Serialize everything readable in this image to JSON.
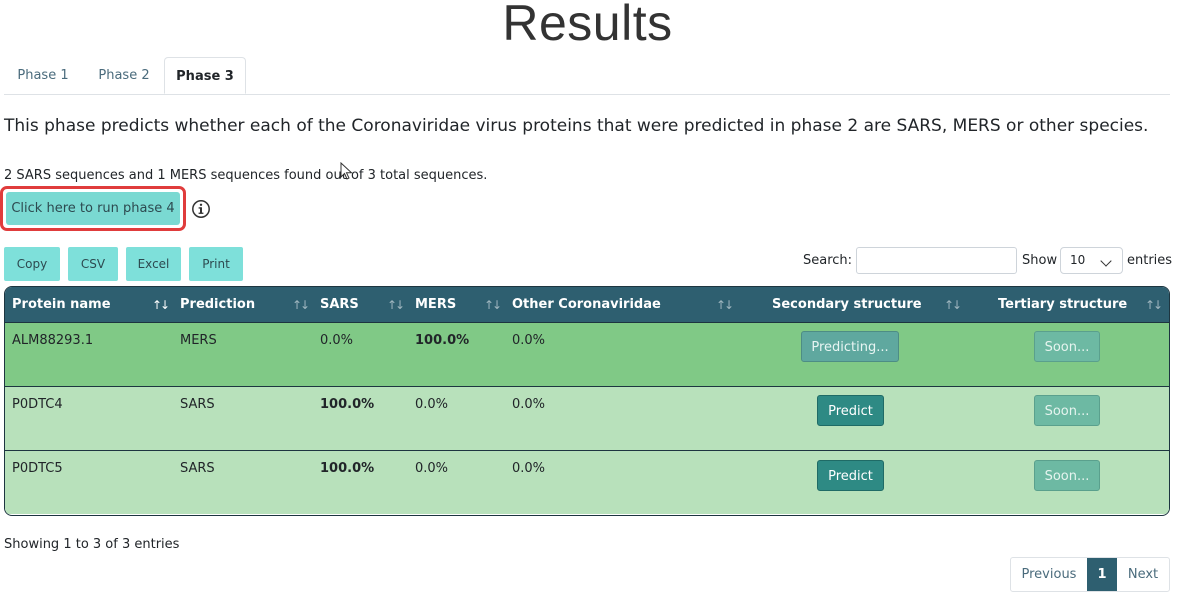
{
  "page": {
    "title": "Results"
  },
  "tabs": [
    {
      "label": "Phase 1",
      "active": false
    },
    {
      "label": "Phase 2",
      "active": false
    },
    {
      "label": "Phase 3",
      "active": true
    }
  ],
  "description": "This phase predicts whether each of the Coronaviridae virus proteins that were predicted in phase 2 are SARS, MERS or other species.",
  "summary": "2 SARS sequences and 1 MERS sequences found out of 3 total sequences.",
  "run_button": {
    "label": "Click here to run phase 4",
    "highlight_color": "#e03c3c"
  },
  "info_icon": "info-circle-icon",
  "toolbar": {
    "copy": "Copy",
    "csv": "CSV",
    "excel": "Excel",
    "print": "Print"
  },
  "search": {
    "label": "Search:",
    "value": "",
    "placeholder": ""
  },
  "entries": {
    "show_label": "Show",
    "selected": "10",
    "suffix_label": "entries"
  },
  "table": {
    "columns": [
      "Protein name",
      "Prediction",
      "SARS",
      "MERS",
      "Other Coronaviridae",
      "Secondary structure",
      "Tertiary structure"
    ],
    "rows": [
      {
        "protein": "ALM88293.1",
        "prediction": "MERS",
        "sars": "0.0%",
        "mers": "100.0%",
        "other": "0.0%",
        "secondary": "Predicting...",
        "tertiary": "Soon..."
      },
      {
        "protein": "P0DTC4",
        "prediction": "SARS",
        "sars": "100.0%",
        "mers": "0.0%",
        "other": "0.0%",
        "secondary": "Predict",
        "tertiary": "Soon..."
      },
      {
        "protein": "P0DTC5",
        "prediction": "SARS",
        "sars": "100.0%",
        "mers": "0.0%",
        "other": "0.0%",
        "secondary": "Predict",
        "tertiary": "Soon..."
      }
    ]
  },
  "footer": {
    "showing": "Showing 1 to 3 of 3 entries"
  },
  "pagination": {
    "previous": "Previous",
    "current": "1",
    "next": "Next"
  },
  "colors": {
    "header": "#2e5f70",
    "highlight_row": "#80c986",
    "row": "#b8e1bb",
    "accent": "#7ad9d2"
  }
}
